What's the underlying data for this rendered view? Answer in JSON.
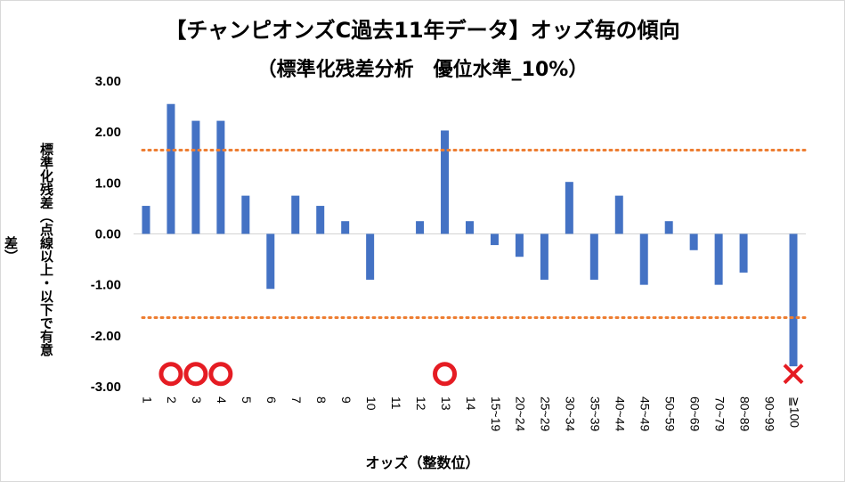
{
  "chart_data": {
    "type": "bar",
    "title": "【チャンピオンズC過去11年データ】オッズ毎の傾向",
    "subtitle": "（標準化残差分析　優位水準_10%）",
    "xlabel": "オッズ（整数位）",
    "ylabel": "標準化残差（点線以上・以下で有意差）",
    "ylim": [
      -3,
      3
    ],
    "yticks": [
      "3.00",
      "2.00",
      "1.00",
      "0.00",
      "-1.00",
      "-2.00",
      "-3.00"
    ],
    "ytick_values": [
      3,
      2,
      1,
      0,
      -1,
      -2,
      -3
    ],
    "categories": [
      "1",
      "2",
      "3",
      "4",
      "5",
      "6",
      "7",
      "8",
      "9",
      "10",
      "11",
      "12",
      "13",
      "14",
      "15~19",
      "20~24",
      "25~29",
      "30~34",
      "35~39",
      "40~44",
      "45~49",
      "50~59",
      "60~69",
      "70~79",
      "80~89",
      "90~99",
      "≧100"
    ],
    "values": [
      0.55,
      2.55,
      2.22,
      2.22,
      0.75,
      -1.08,
      0.75,
      0.55,
      0.25,
      -0.9,
      0,
      0.25,
      2.03,
      0.25,
      -0.22,
      -0.45,
      -0.9,
      1.02,
      -0.9,
      0.75,
      -1.0,
      0.25,
      -0.32,
      -1.0,
      -0.76,
      0,
      -2.6
    ],
    "threshold_upper": 1.645,
    "threshold_lower": -1.645,
    "markers": {
      "circle_categories": [
        "2",
        "3",
        "4",
        "13"
      ],
      "cross_categories": [
        "≧100"
      ],
      "marker_y": -2.75
    },
    "colors": {
      "bar": "#4472c4",
      "threshold": "#ed7d31",
      "circle": "#e51c23",
      "cross": "#e51c23",
      "axis": "#d9d9d9"
    },
    "grid": false
  }
}
